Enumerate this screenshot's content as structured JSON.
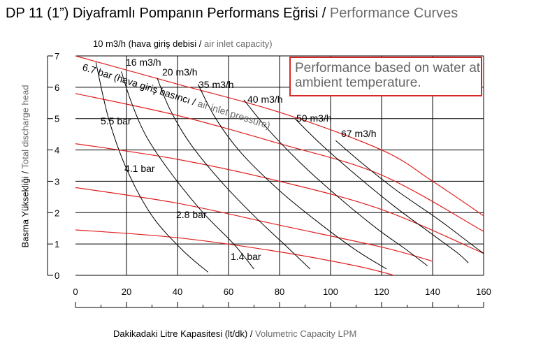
{
  "title_tr": "DP 11  (1”) Diyaframlı Pompanın Performans Eğrisi",
  "title_sep": " / ",
  "title_en": "Performance Curves",
  "note": "Performance based on water at ambient temperature.",
  "colors": {
    "grid": "#000000",
    "pressure_curve": "#e01f1f",
    "flow_curve": "#000000",
    "note_border": "#d62828",
    "en_text": "#6b6b6b"
  },
  "chart_data": {
    "type": "line",
    "title": "DP 11  (1”) Diyaframlı Pompanın Performans Eğrisi / Performance Curves",
    "xlabel_tr": "Dakikadaki Litre Kapasitesi (lt/dk)",
    "xlabel_en": "Volumetric Capacity LPM",
    "ylabel_tr": "Basma Yüksekliği",
    "ylabel_en": "Total discharge head",
    "xlim": [
      0,
      160
    ],
    "ylim": [
      0,
      7
    ],
    "xticks": [
      0,
      20,
      40,
      60,
      80,
      100,
      120,
      140,
      160
    ],
    "yticks": [
      0,
      1,
      2,
      3,
      4,
      5,
      6,
      7
    ],
    "grid": true,
    "air_pressure_caption_tr": "hava giriş basıncı",
    "air_pressure_caption_en": "air inlet pressure",
    "air_capacity_caption_tr": "10 m3/h (hava giriş debisi",
    "air_capacity_caption_en": "air inlet capacity)",
    "pressure_series": [
      {
        "name": "6.7 bar",
        "x": [
          0,
          40,
          80,
          120,
          140,
          160
        ],
        "y": [
          7.0,
          6.1,
          5.2,
          4.0,
          3.0,
          1.9
        ]
      },
      {
        "name": "5.5 bar",
        "x": [
          0,
          40,
          80,
          120,
          160
        ],
        "y": [
          5.8,
          5.1,
          4.2,
          3.2,
          1.4
        ]
      },
      {
        "name": "4.1 bar",
        "x": [
          0,
          40,
          80,
          120,
          160
        ],
        "y": [
          4.2,
          3.7,
          3.0,
          2.1,
          0.7
        ]
      },
      {
        "name": "2.8 bar",
        "x": [
          0,
          40,
          80,
          120,
          140
        ],
        "y": [
          2.8,
          2.3,
          1.6,
          0.9,
          0.45
        ]
      },
      {
        "name": "1.4 bar",
        "x": [
          0,
          40,
          80,
          110,
          125
        ],
        "y": [
          1.45,
          1.2,
          0.75,
          0.3,
          0.0
        ]
      }
    ],
    "flow_series": [
      {
        "name": "10 m3/h",
        "x": [
          8,
          13,
          20,
          30,
          42,
          52
        ],
        "y": [
          6.8,
          5.0,
          3.4,
          1.9,
          0.8,
          0.1
        ]
      },
      {
        "name": "16 m3/h",
        "x": [
          18,
          22,
          28,
          38,
          50,
          62,
          70
        ],
        "y": [
          6.5,
          5.5,
          4.4,
          3.2,
          2.0,
          1.0,
          0.2
        ]
      },
      {
        "name": "20 m3/h",
        "x": [
          32,
          37,
          45,
          57,
          70,
          83,
          92
        ],
        "y": [
          6.3,
          5.3,
          4.2,
          3.0,
          1.9,
          0.9,
          0.2
        ]
      },
      {
        "name": "35 m3/h",
        "x": [
          48,
          55,
          65,
          80,
          95,
          110,
          122
        ],
        "y": [
          6.1,
          5.0,
          3.9,
          2.7,
          1.7,
          0.8,
          0.2
        ]
      },
      {
        "name": "40 m3/h",
        "x": [
          66,
          75,
          88,
          103,
          118,
          130,
          138
        ],
        "y": [
          5.6,
          4.7,
          3.6,
          2.5,
          1.5,
          0.8,
          0.3
        ]
      },
      {
        "name": "50 m3/h",
        "x": [
          86,
          96,
          110,
          125,
          140,
          150,
          154
        ],
        "y": [
          5.0,
          4.2,
          3.2,
          2.2,
          1.3,
          0.7,
          0.4
        ]
      },
      {
        "name": "67 m3/h",
        "x": [
          102,
          112,
          126,
          142,
          155,
          160
        ],
        "y": [
          4.3,
          3.6,
          2.7,
          1.8,
          1.0,
          0.7
        ]
      }
    ]
  }
}
